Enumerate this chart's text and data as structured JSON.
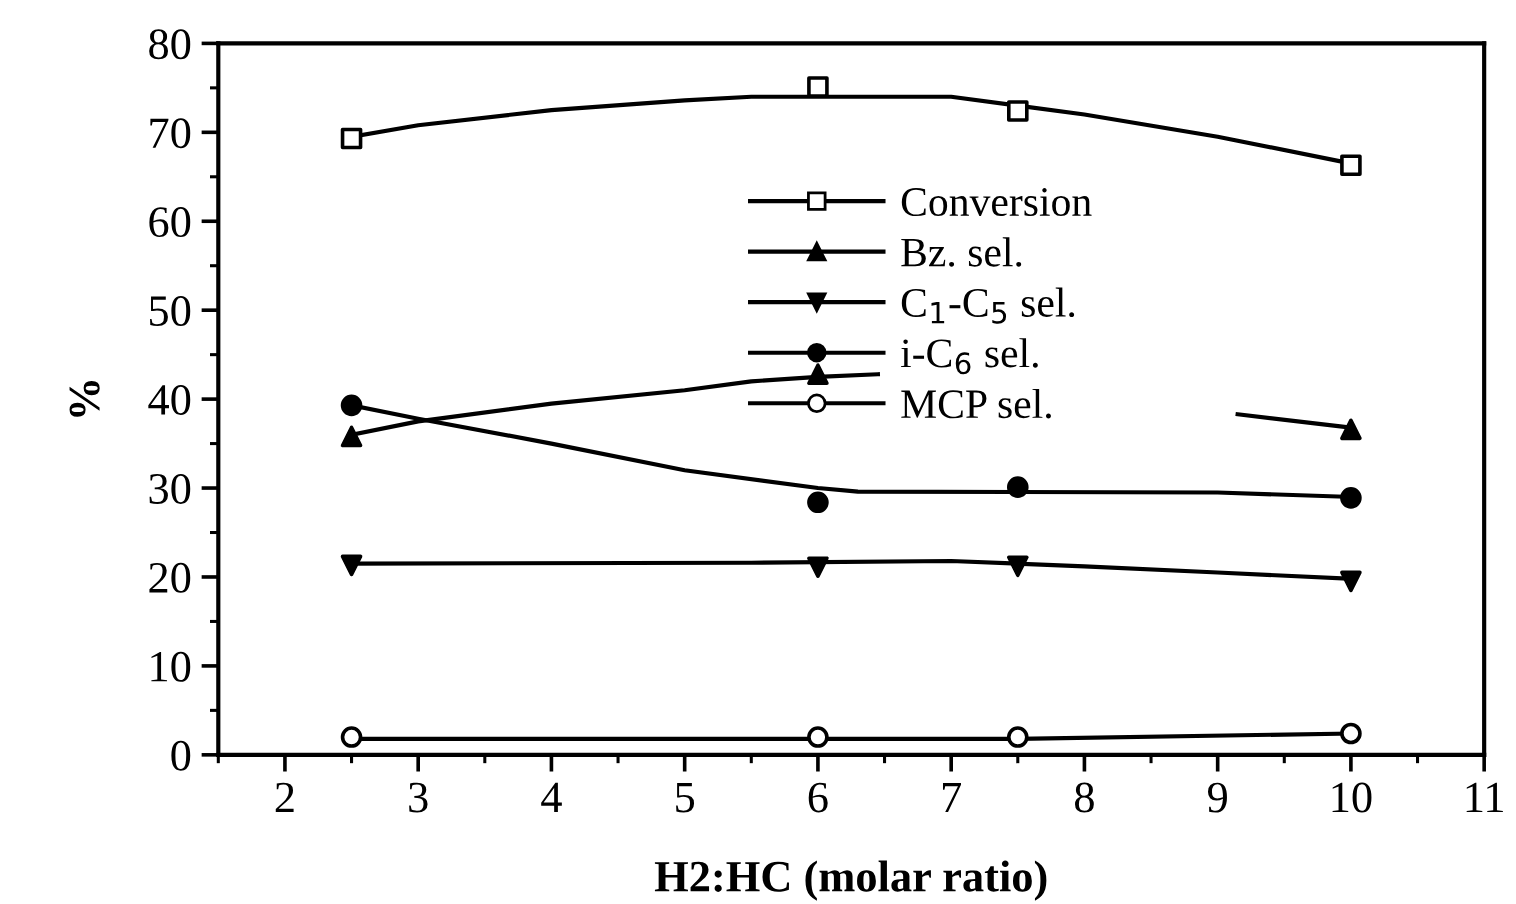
{
  "chart_data": {
    "type": "scatter",
    "xlabel": "H2:HC (molar ratio)",
    "ylabel": "%",
    "x": [
      2.5,
      6,
      7.5,
      10
    ],
    "xlim": [
      1.5,
      11
    ],
    "xticks": [
      2,
      3,
      4,
      5,
      6,
      7,
      8,
      9,
      10,
      11
    ],
    "ylim": [
      0,
      80
    ],
    "yticks": [
      0,
      10,
      20,
      30,
      40,
      50,
      60,
      70,
      80
    ],
    "grid": false,
    "legend": "right",
    "series": [
      {
        "name": "Conversion",
        "color": "#000000",
        "marker": "square-open",
        "values": [
          69.3,
          75.1,
          72.4,
          66.3
        ]
      },
      {
        "name": "Bz. sel.",
        "color": "#000000",
        "marker": "triangle",
        "values": [
          35.8,
          42.8,
          null,
          36.6
        ]
      },
      {
        "name": "C$_{1}$-C$_{5}$ sel.",
        "color": "#000000",
        "marker": "triangle-down",
        "values": [
          21.3,
          21.1,
          21.2,
          19.5
        ]
      },
      {
        "name": "i-C$_{6}$ sel.",
        "color": "#000000",
        "marker": "circle",
        "values": [
          39.3,
          28.4,
          30.1,
          28.9
        ]
      },
      {
        "name": "MCP sel.",
        "color": "#000000",
        "marker": "circle-open",
        "values": [
          2.0,
          2.0,
          2.0,
          2.4
        ]
      },
      {
        "type": "line",
        "color": "#000000",
        "x": [
          2.5,
          3,
          4,
          5,
          5.5,
          6,
          7,
          7.5,
          8,
          9,
          10
        ],
        "values": [
          69.5,
          70.8,
          72.5,
          73.6,
          74,
          74,
          74,
          73,
          72,
          69.5,
          66.5
        ]
      },
      {
        "type": "line",
        "color": "#000000",
        "x": [
          2.5,
          3,
          4,
          5,
          5.5,
          6,
          6.45,
          7.8,
          9.15,
          10
        ],
        "values": [
          36,
          37.5,
          39.5,
          41,
          42,
          42.5,
          42.8,
          null,
          38.3,
          36.8
        ]
      },
      {
        "type": "line",
        "color": "#000000",
        "x": [
          2.5,
          5.5,
          7,
          8,
          9,
          10
        ],
        "values": [
          21.5,
          21.6,
          21.8,
          21.2,
          20.5,
          19.8
        ]
      },
      {
        "type": "line",
        "color": "#000000",
        "x": [
          2.5,
          3,
          4,
          5,
          6,
          6.3,
          9,
          10
        ],
        "values": [
          39.3,
          37.8,
          35,
          32,
          30,
          29.6,
          29.5,
          29
        ]
      },
      {
        "type": "line",
        "color": "#000000",
        "x": [
          2.5,
          7.5,
          10
        ],
        "values": [
          1.8,
          1.8,
          2.4
        ]
      }
    ]
  }
}
